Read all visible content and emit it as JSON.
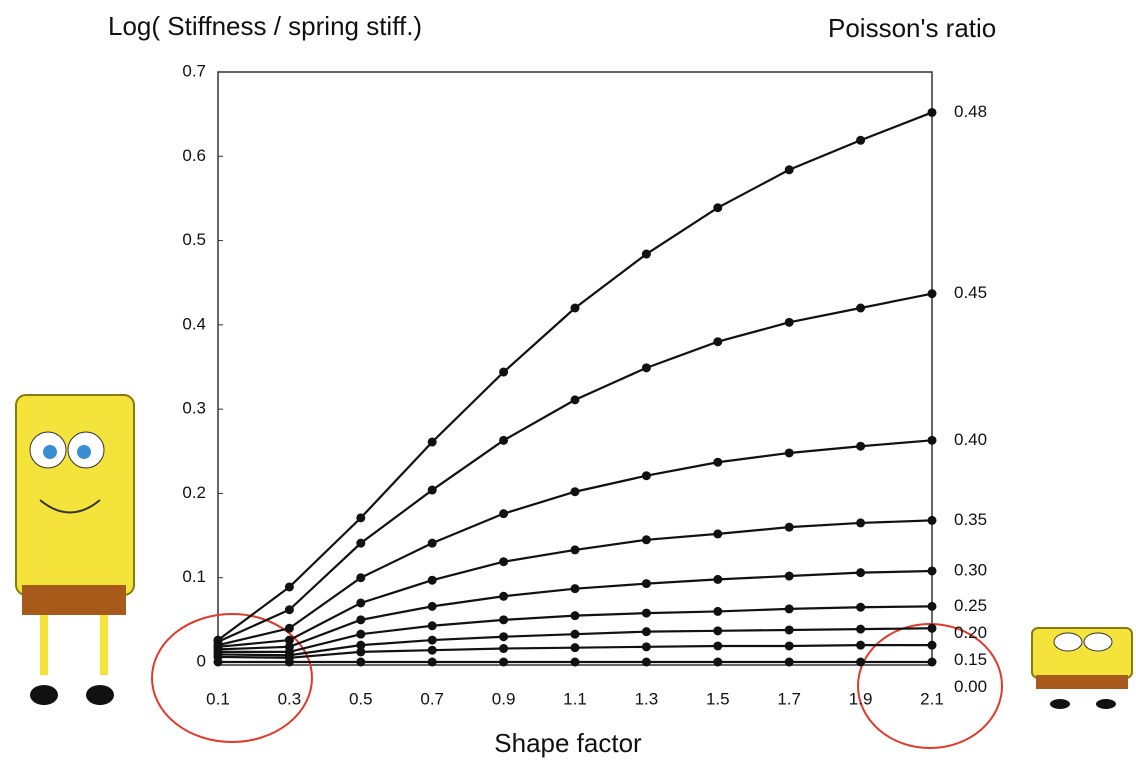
{
  "chart_data": {
    "type": "line",
    "y_axis_title": "Log( Stiffness / spring stiff.)",
    "legend_title": "Poisson's ratio",
    "x_axis_title": "Shape factor",
    "x": [
      0.1,
      0.3,
      0.5,
      0.7,
      0.9,
      1.1,
      1.3,
      1.5,
      1.7,
      1.9,
      2.1
    ],
    "xlim": [
      0.1,
      2.1
    ],
    "xticks": [
      0.1,
      0.3,
      0.5,
      0.7,
      0.9,
      1.1,
      1.3,
      1.5,
      1.7,
      1.9,
      2.1
    ],
    "ylim": [
      0,
      0.7
    ],
    "yticks": [
      0,
      0.1,
      0.2,
      0.3,
      0.4,
      0.5,
      0.6,
      0.7
    ],
    "grid": false,
    "legend": "line-end",
    "series": [
      {
        "name": "0.48",
        "color": "#111111",
        "values": [
          0.026,
          0.089,
          0.171,
          0.261,
          0.344,
          0.42,
          0.484,
          0.539,
          0.584,
          0.619,
          0.652
        ]
      },
      {
        "name": "0.45",
        "color": "#111111",
        "values": [
          0.024,
          0.062,
          0.141,
          0.204,
          0.263,
          0.311,
          0.349,
          0.38,
          0.403,
          0.42,
          0.437
        ]
      },
      {
        "name": "0.40",
        "color": "#111111",
        "values": [
          0.02,
          0.04,
          0.1,
          0.141,
          0.176,
          0.202,
          0.221,
          0.237,
          0.248,
          0.256,
          0.263
        ]
      },
      {
        "name": "0.35",
        "color": "#111111",
        "values": [
          0.018,
          0.026,
          0.07,
          0.097,
          0.119,
          0.133,
          0.145,
          0.152,
          0.16,
          0.165,
          0.168
        ]
      },
      {
        "name": "0.30",
        "color": "#111111",
        "values": [
          0.015,
          0.018,
          0.05,
          0.066,
          0.078,
          0.087,
          0.093,
          0.098,
          0.102,
          0.106,
          0.108
        ]
      },
      {
        "name": "0.25",
        "color": "#111111",
        "values": [
          0.012,
          0.012,
          0.033,
          0.043,
          0.05,
          0.055,
          0.058,
          0.06,
          0.063,
          0.065,
          0.066
        ]
      },
      {
        "name": "0.20",
        "color": "#111111",
        "values": [
          0.009,
          0.008,
          0.02,
          0.026,
          0.03,
          0.033,
          0.036,
          0.037,
          0.038,
          0.039,
          0.04
        ]
      },
      {
        "name": "0.15",
        "color": "#111111",
        "values": [
          0.006,
          0.005,
          0.012,
          0.014,
          0.016,
          0.017,
          0.018,
          0.019,
          0.019,
          0.02,
          0.02
        ]
      },
      {
        "name": "0.00",
        "color": "#111111",
        "values": [
          0,
          0,
          0,
          0,
          0,
          0,
          0,
          0,
          0,
          0,
          0
        ]
      }
    ]
  }
}
